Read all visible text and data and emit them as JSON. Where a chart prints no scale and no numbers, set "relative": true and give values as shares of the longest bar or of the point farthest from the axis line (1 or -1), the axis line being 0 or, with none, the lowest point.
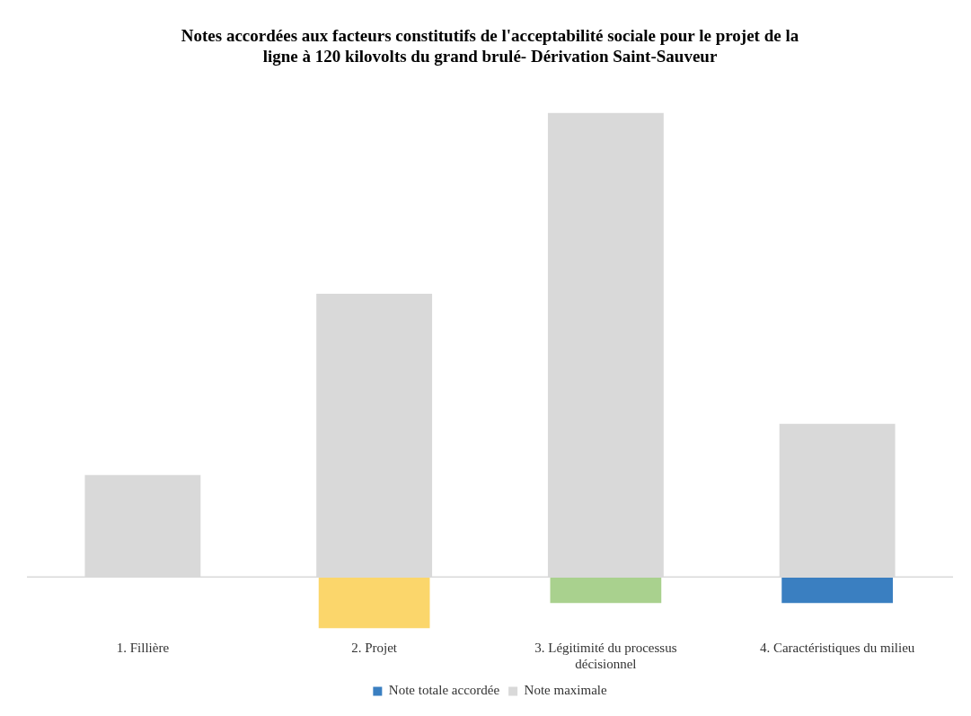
{
  "chart_data": {
    "type": "bar",
    "title": "Notes accordées aux facteurs constitutifs de l'acceptabilité sociale pour le projet de la ligne à 120 kilovolts du grand brulé- Dérivation Saint-Sauveur",
    "categories": [
      "1. Fillière",
      "2. Projet",
      "3. Légitimité du processus décisionnel",
      "4. Caractéristiques du milieu"
    ],
    "relative": true,
    "legend": "bottom",
    "grid": false,
    "series": [
      {
        "name": "Note totale accordée",
        "color": "#3a7fc1",
        "colors": [
          "#3a7fc1",
          "#fbd66b",
          "#a9d18e",
          "#3a7fc1"
        ],
        "values": [
          0,
          -0.11,
          -0.056,
          -0.056
        ]
      },
      {
        "name": "Note maximale",
        "color": "#d9d9d9",
        "values": [
          0.22,
          0.61,
          1,
          0.33
        ]
      }
    ]
  }
}
